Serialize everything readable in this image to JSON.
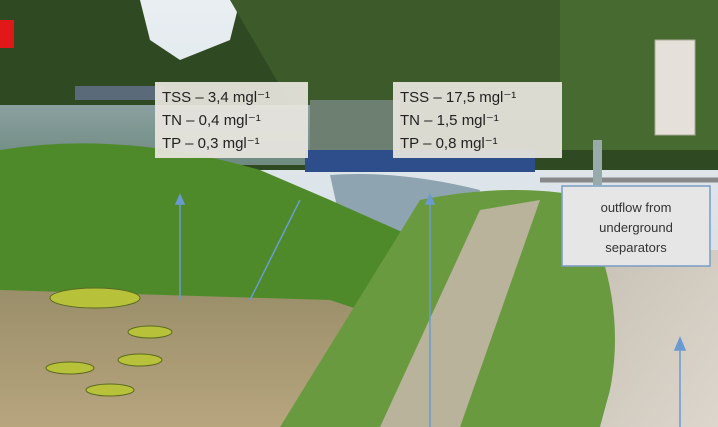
{
  "annotations": [
    {
      "lines": [
        "TSS – 3,4 mgl⁻¹",
        "TN –  0,4 mgl⁻¹",
        "TP – 0,3  mgl⁻¹"
      ]
    },
    {
      "lines": [
        "TSS – 17,5 mgl⁻¹",
        "TN –  1,5 mgl⁻¹",
        "TP – 0,8  mgl⁻¹"
      ]
    }
  ],
  "callout": {
    "lines": [
      "outflow from",
      "underground",
      "separators"
    ]
  }
}
